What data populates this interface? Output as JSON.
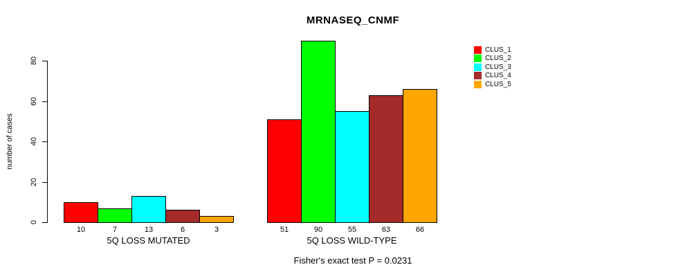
{
  "chart_data": {
    "type": "bar",
    "title": "MRNASEQ_CNMF",
    "ylabel": "number of cases",
    "xlabel": "",
    "yticks": [
      0,
      20,
      40,
      60,
      80
    ],
    "ylim": [
      0,
      90
    ],
    "grid": false,
    "legend_position": "right",
    "groups": [
      {
        "label": "5Q LOSS MUTATED",
        "values": [
          10,
          7,
          13,
          6,
          3
        ]
      },
      {
        "label": "5Q LOSS WILD-TYPE",
        "values": [
          51,
          90,
          55,
          63,
          66
        ]
      }
    ],
    "series": [
      {
        "name": "CLUS_1",
        "color": "#FF0000",
        "values": [
          10,
          51
        ]
      },
      {
        "name": "CLUS_2",
        "color": "#00FF00",
        "values": [
          7,
          90
        ]
      },
      {
        "name": "CLUS_3",
        "color": "#00FFFF",
        "values": [
          13,
          55
        ]
      },
      {
        "name": "CLUS_4",
        "color": "#A52A2A",
        "values": [
          6,
          63
        ]
      },
      {
        "name": "CLUS_5",
        "color": "#FFA500",
        "values": [
          3,
          66
        ]
      }
    ],
    "legend": [
      {
        "label": "CLUS_1",
        "color": "#FF0000"
      },
      {
        "label": "CLUS_2",
        "color": "#00FF00"
      },
      {
        "label": "CLUS_3",
        "color": "#00FFFF"
      },
      {
        "label": "CLUS_4",
        "color": "#A52A2A"
      },
      {
        "label": "CLUS_5",
        "color": "#FFA500"
      }
    ],
    "annotation": "Fisher's exact test P = 0.0231",
    "axis_color": "#000000",
    "bar_border_color": "#000000"
  }
}
